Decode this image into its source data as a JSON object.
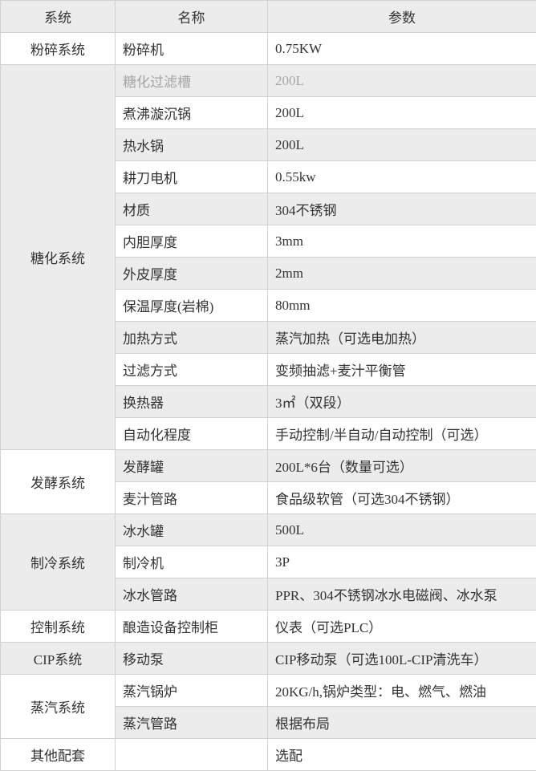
{
  "colors": {
    "shade_bg": "#ececec",
    "border": "#d2d2d2",
    "text": "#333333",
    "muted_text": "#a5a5a5"
  },
  "table": {
    "headers": [
      "系统",
      "名称",
      "参数"
    ],
    "groups": [
      {
        "system": "粉碎系统",
        "shaded": false,
        "rows": [
          {
            "name": "粉碎机",
            "param": "0.75KW"
          }
        ]
      },
      {
        "system": "糖化系统",
        "shaded": true,
        "rows": [
          {
            "name": "糖化过滤槽",
            "param": "200L",
            "muted": true
          },
          {
            "name": "煮沸漩沉锅",
            "param": "200L"
          },
          {
            "name": "热水锅",
            "param": "200L"
          },
          {
            "name": "耕刀电机",
            "param": "0.55kw"
          },
          {
            "name": "材质",
            "param": "304不锈钢"
          },
          {
            "name": "内胆厚度",
            "param": "3mm"
          },
          {
            "name": "外皮厚度",
            "param": "2mm"
          },
          {
            "name": "保温厚度(岩棉)",
            "param": "80mm"
          },
          {
            "name": "加热方式",
            "param": "蒸汽加热（可选电加热）"
          },
          {
            "name": "过滤方式",
            "param": "变频抽滤+麦汁平衡管"
          },
          {
            "name": "换热器",
            "param": "3㎡（双段）"
          },
          {
            "name": "自动化程度",
            "param": "手动控制/半自动/自动控制（可选）"
          }
        ]
      },
      {
        "system": "发酵系统",
        "shaded": false,
        "rows": [
          {
            "name": "发酵罐",
            "param": "200L*6台（数量可选）"
          },
          {
            "name": "麦汁管路",
            "param": "食品级软管（可选304不锈钢）"
          }
        ]
      },
      {
        "system": "制冷系统",
        "shaded": true,
        "rows": [
          {
            "name": "冰水罐",
            "param": "500L"
          },
          {
            "name": "制冷机",
            "param": "3P"
          },
          {
            "name": "冰水管路",
            "param": "PPR、304不锈钢冰水电磁阀、冰水泵"
          }
        ]
      },
      {
        "system": "控制系统",
        "shaded": false,
        "rows": [
          {
            "name": "酿造设备控制柜",
            "param": "仪表（可选PLC）"
          }
        ]
      },
      {
        "system": "CIP系统",
        "shaded": true,
        "rows": [
          {
            "name": "移动泵",
            "param": "CIP移动泵（可选100L-CIP清洗车）"
          }
        ]
      },
      {
        "system": "蒸汽系统",
        "shaded": false,
        "rows": [
          {
            "name": "蒸汽锅炉",
            "param": "20KG/h,锅炉类型：电、燃气、燃油"
          },
          {
            "name": "蒸汽管路",
            "param": "根据布局"
          }
        ]
      },
      {
        "system": "其他配套",
        "shaded": false,
        "rows": [
          {
            "name": "",
            "param": "选配"
          }
        ]
      }
    ]
  }
}
